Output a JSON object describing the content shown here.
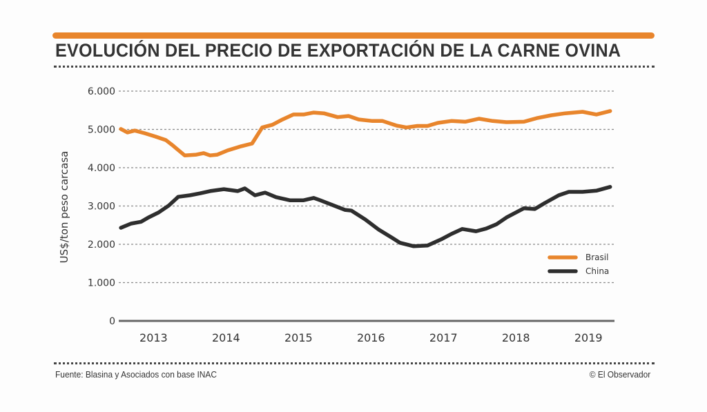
{
  "header": {
    "title": "EVOLUCIÓN DEL PRECIO DE EXPORTACIÓN DE LA CARNE OVINA",
    "accent_color": "#e8852c"
  },
  "footer": {
    "source": "Fuente: Blasina y Asociados con base INAC",
    "credit": "© El Observador"
  },
  "chart_data": {
    "type": "line",
    "title": "EVOLUCIÓN DEL PRECIO DE EXPORTACIÓN DE LA CARNE OVINA",
    "xlabel": "",
    "ylabel": "US$/ton peso carcasa",
    "ylim": [
      0,
      6000
    ],
    "xlim": [
      2013.02,
      2019.86
    ],
    "yticks": [
      0,
      1000,
      2000,
      3000,
      4000,
      5000,
      6000
    ],
    "ytick_labels": [
      "0",
      "1.000",
      "2.000",
      "3.000",
      "4.000",
      "5.000",
      "6.000"
    ],
    "xtick_labels": [
      "2013",
      "2014",
      "2015",
      "2016",
      "2017",
      "2018",
      "2019"
    ],
    "xtick_positions": [
      2013.5,
      2014.5,
      2015.5,
      2016.5,
      2017.5,
      2018.5,
      2019.5
    ],
    "grid": "horizontal-dotted",
    "legend_position": "right",
    "series": [
      {
        "name": "Brasil",
        "color": "#e8852c",
        "x": [
          2013.05,
          2013.14,
          2013.24,
          2013.38,
          2013.53,
          2013.67,
          2013.76,
          2013.93,
          2014.09,
          2014.19,
          2014.28,
          2014.38,
          2014.52,
          2014.71,
          2014.86,
          2015.0,
          2015.14,
          2015.28,
          2015.43,
          2015.57,
          2015.71,
          2015.85,
          2016.04,
          2016.19,
          2016.33,
          2016.52,
          2016.66,
          2016.85,
          2016.99,
          2017.14,
          2017.28,
          2017.42,
          2017.61,
          2017.8,
          2017.99,
          2018.18,
          2018.37,
          2018.61,
          2018.8,
          2018.99,
          2019.18,
          2019.42,
          2019.61,
          2019.8
        ],
        "values": [
          5010,
          4920,
          4970,
          4900,
          4810,
          4720,
          4590,
          4320,
          4340,
          4380,
          4320,
          4340,
          4450,
          4560,
          4630,
          5050,
          5120,
          5260,
          5390,
          5390,
          5440,
          5420,
          5320,
          5350,
          5260,
          5220,
          5220,
          5100,
          5050,
          5090,
          5090,
          5170,
          5220,
          5200,
          5280,
          5220,
          5190,
          5200,
          5300,
          5370,
          5420,
          5460,
          5390,
          5480
        ]
      },
      {
        "name": "China",
        "color": "#2e2e2e",
        "x": [
          2013.05,
          2013.19,
          2013.33,
          2013.43,
          2013.57,
          2013.71,
          2013.84,
          2014.0,
          2014.14,
          2014.28,
          2014.47,
          2014.66,
          2014.76,
          2014.9,
          2015.04,
          2015.19,
          2015.38,
          2015.57,
          2015.71,
          2015.8,
          2015.95,
          2016.14,
          2016.23,
          2016.42,
          2016.61,
          2016.8,
          2016.9,
          2017.09,
          2017.28,
          2017.47,
          2017.61,
          2017.76,
          2017.95,
          2018.09,
          2018.23,
          2018.37,
          2018.61,
          2018.76,
          2018.9,
          2019.09,
          2019.23,
          2019.42,
          2019.61,
          2019.8
        ],
        "values": [
          2430,
          2540,
          2590,
          2700,
          2830,
          3010,
          3240,
          3280,
          3330,
          3390,
          3440,
          3390,
          3460,
          3280,
          3350,
          3230,
          3150,
          3150,
          3210,
          3150,
          3040,
          2900,
          2880,
          2650,
          2380,
          2160,
          2040,
          1950,
          1970,
          2130,
          2270,
          2400,
          2340,
          2410,
          2520,
          2700,
          2940,
          2920,
          3080,
          3280,
          3370,
          3370,
          3400,
          3500
        ]
      }
    ]
  }
}
